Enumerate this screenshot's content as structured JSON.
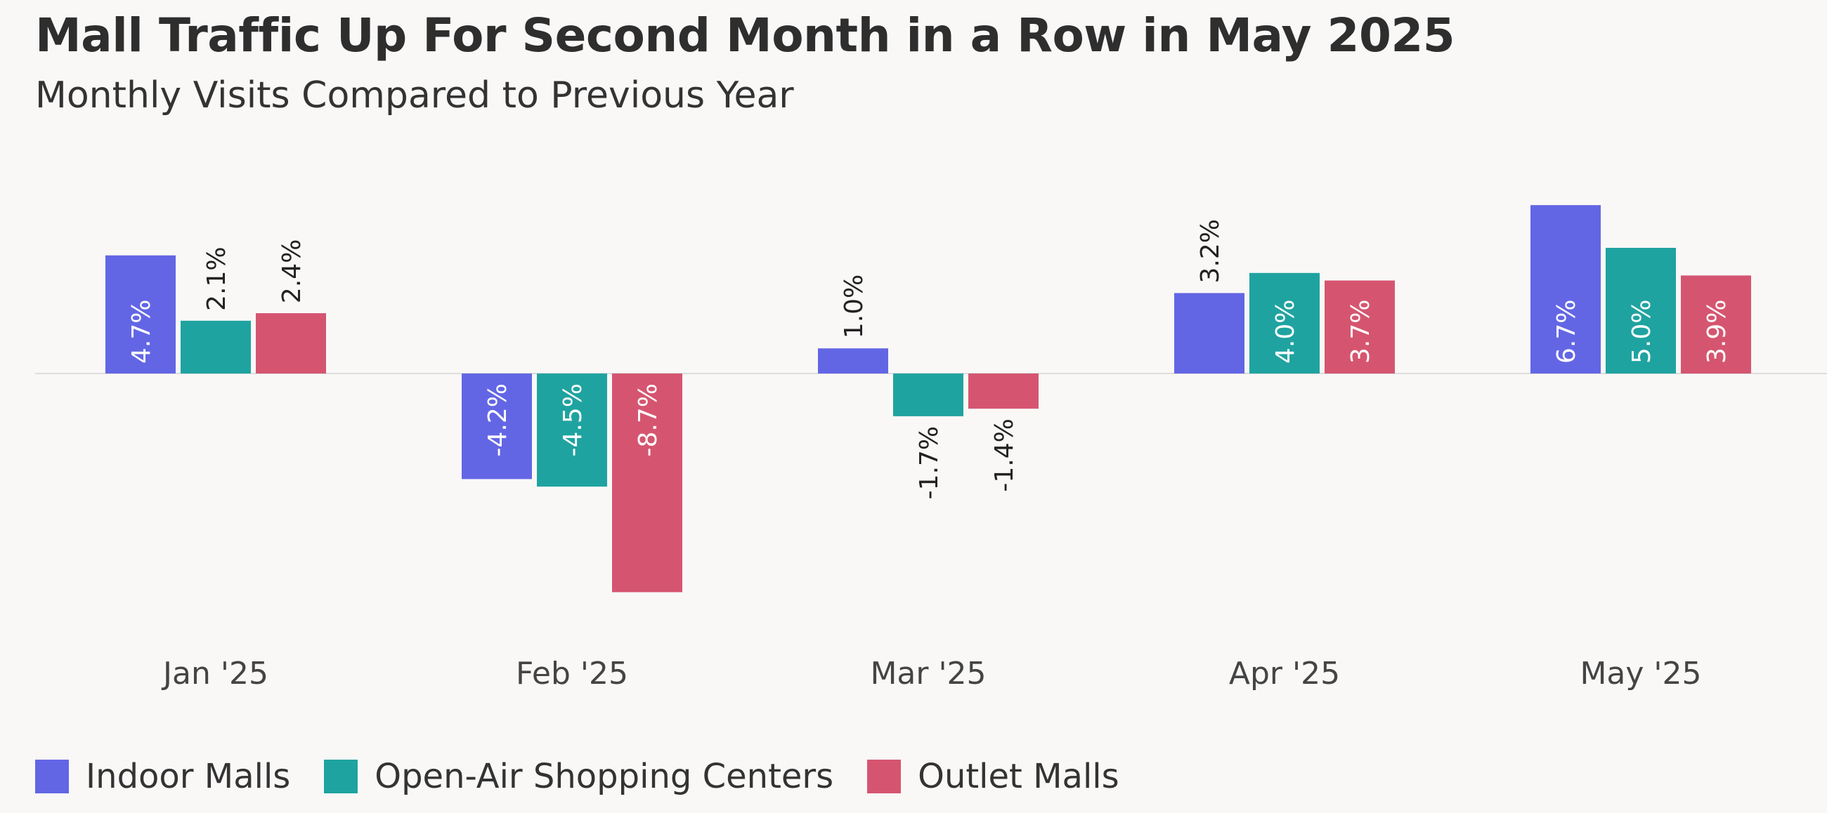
{
  "chart_data": {
    "type": "bar",
    "title": "Mall Traffic Up For Second Month in a Row in May 2025",
    "subtitle": "Monthly Visits Compared to Previous Year",
    "categories": [
      "Jan '25",
      "Feb '25",
      "Mar '25",
      "Apr '25",
      "May '25"
    ],
    "series": [
      {
        "name": "Indoor Malls",
        "color": "#6366e4",
        "values": [
          4.7,
          -4.2,
          1.0,
          3.2,
          6.7
        ],
        "labels": [
          "4.7%",
          "-4.2%",
          "1.0%",
          "3.2%",
          "6.7%"
        ]
      },
      {
        "name": "Open-Air Shopping Centers",
        "color": "#1fa3a0",
        "values": [
          2.1,
          -4.5,
          -1.7,
          4.0,
          5.0
        ],
        "labels": [
          "2.1%",
          "-4.5%",
          "-1.7%",
          "4.0%",
          "5.0%"
        ]
      },
      {
        "name": "Outlet Malls",
        "color": "#d55570",
        "values": [
          2.4,
          -8.7,
          -1.4,
          3.7,
          3.9
        ],
        "labels": [
          "2.4%",
          "-8.7%",
          "-1.4%",
          "3.7%",
          "3.9%"
        ]
      }
    ],
    "ylim": [
      -10,
      8
    ],
    "grid": false,
    "legend_position": "bottom-left",
    "xlabel": "",
    "ylabel": ""
  }
}
